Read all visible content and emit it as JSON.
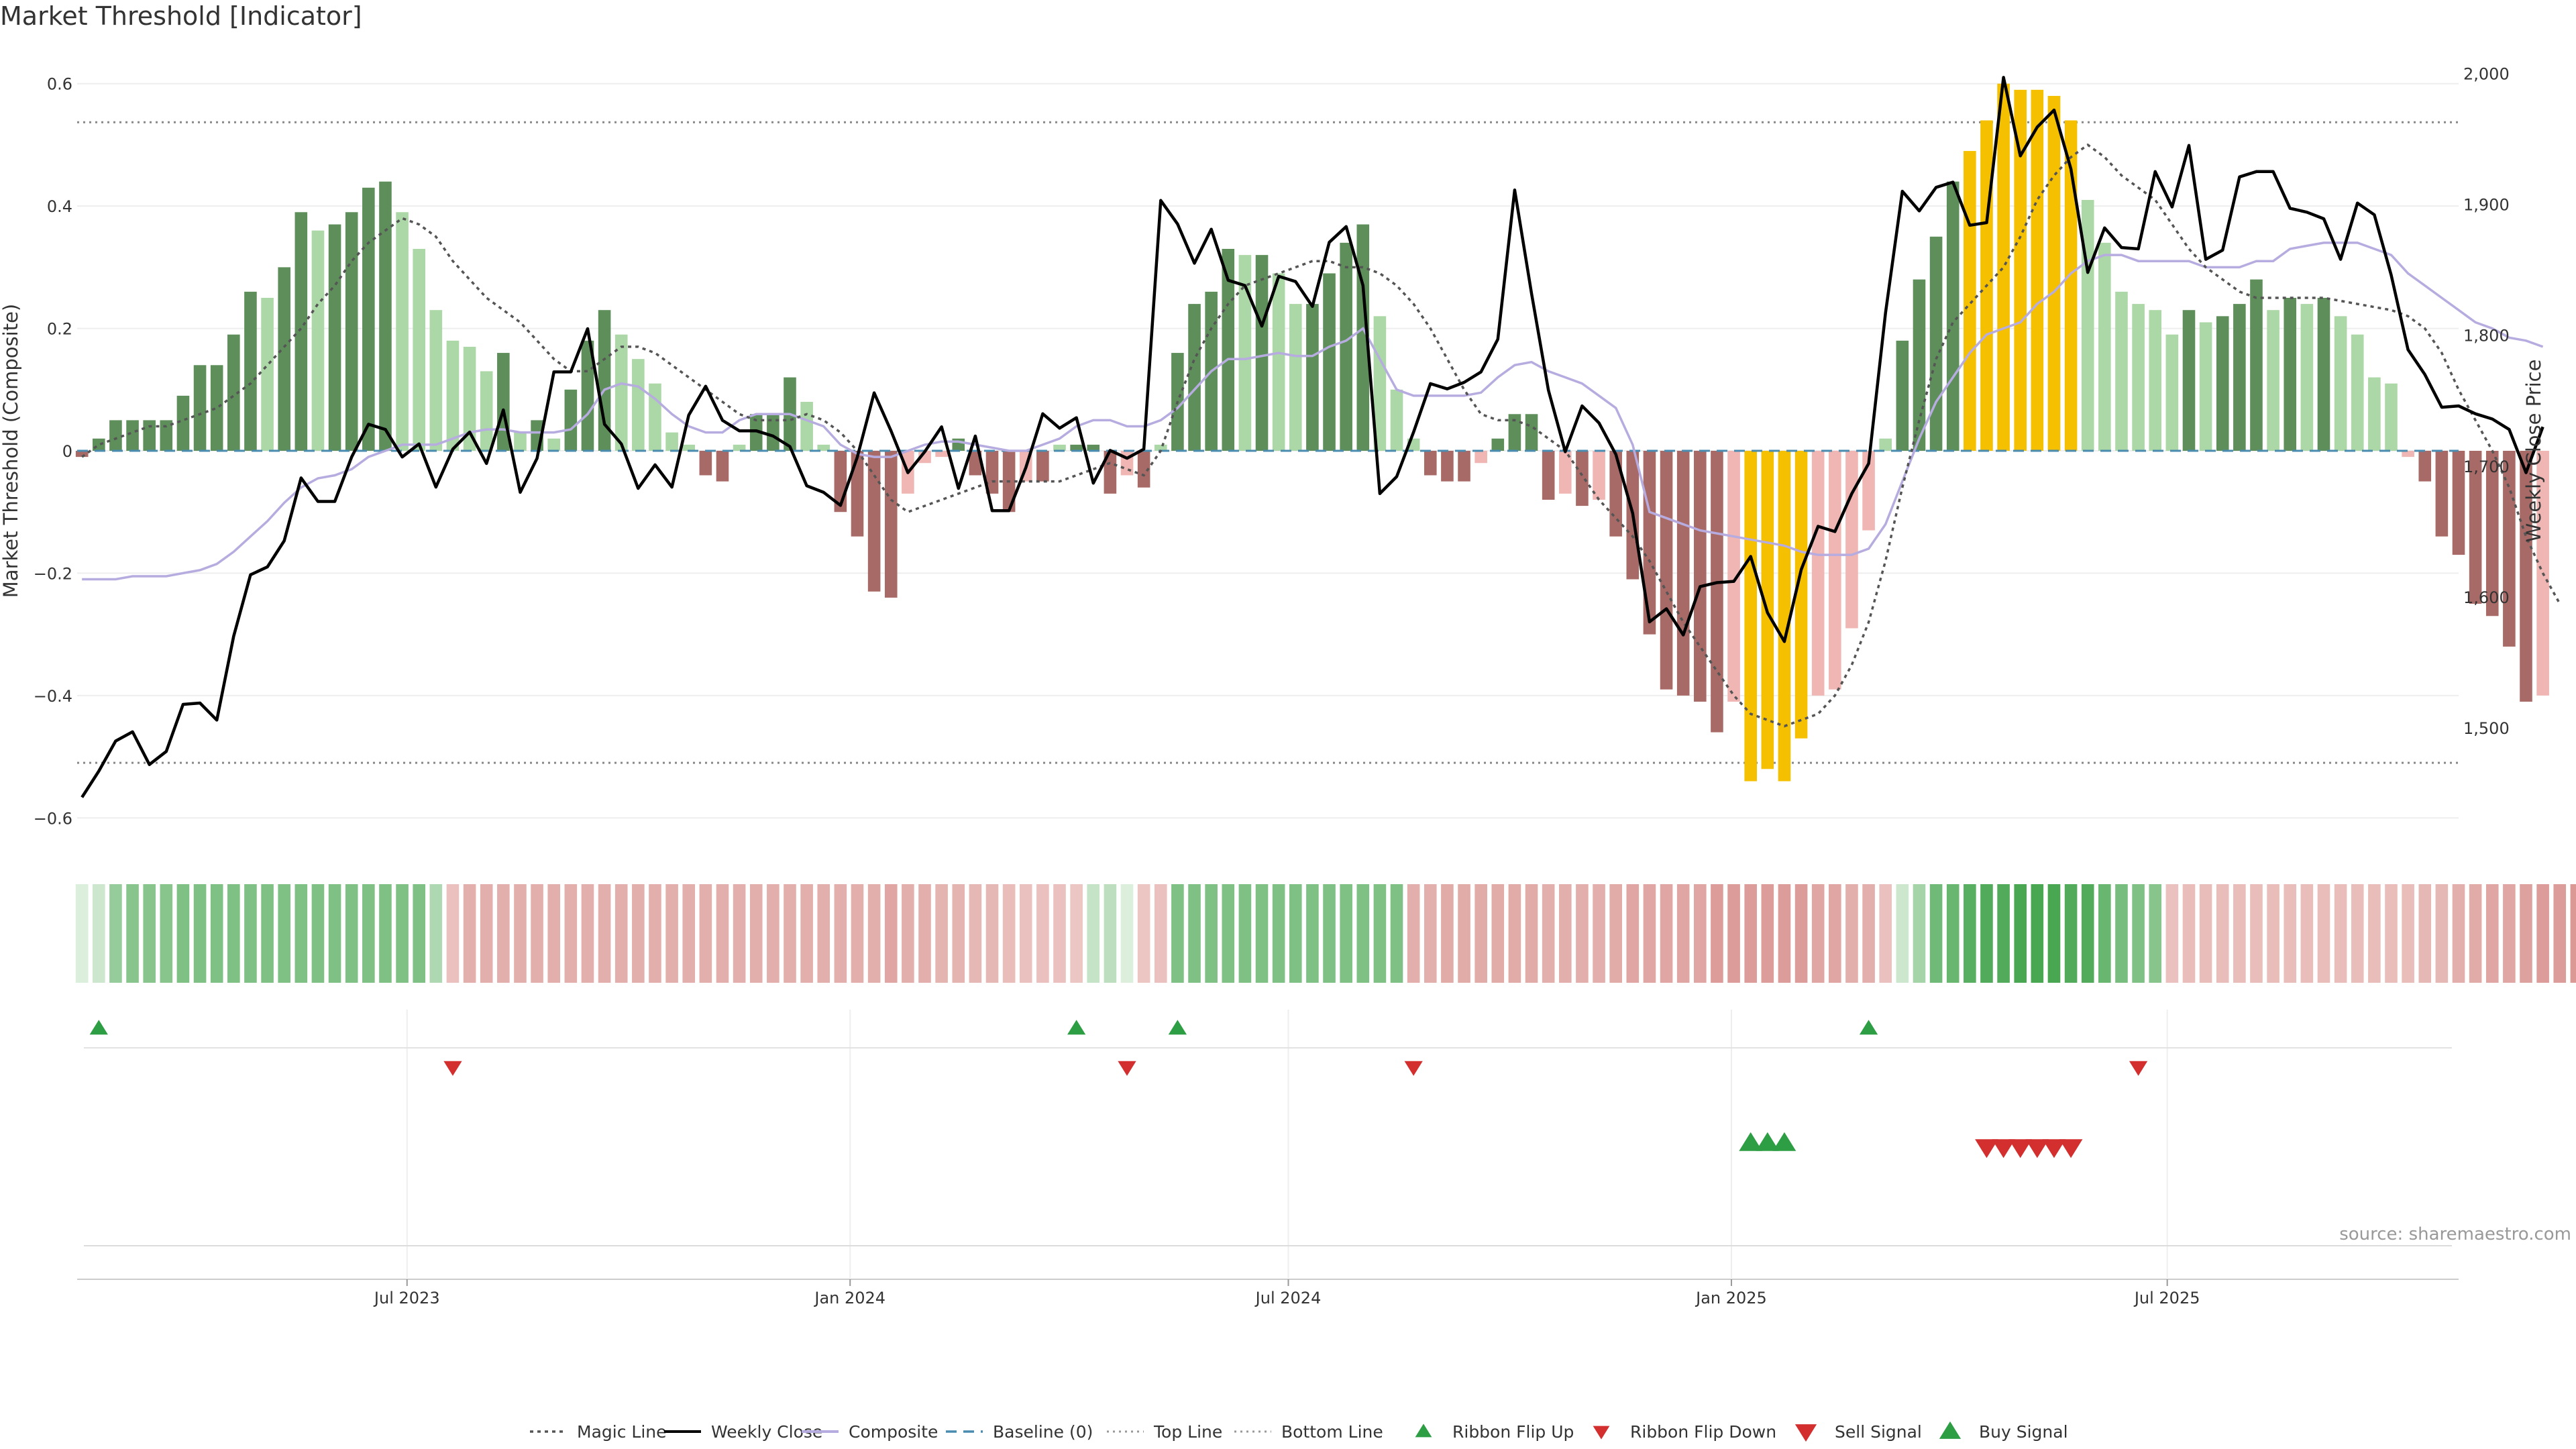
{
  "title": "Market Threshold [Indicator]",
  "source": "source: sharemaestro.com",
  "colors": {
    "bull_strong": "#5e8f5b",
    "bull_light": "#acd7a6",
    "bear_strong": "#a86a66",
    "bear_light": "#efb6b3",
    "extreme": "#f4c000",
    "weekly_close": "#000000",
    "composite": "#b7acdf",
    "magic": "#555555",
    "baseline": "#4a8bb0",
    "signal_up": "#2e9e44",
    "signal_down": "#d32f2f"
  },
  "chart_data": {
    "type": "bar",
    "left_axis": {
      "label": "Market Threshold (Composite)",
      "range": [
        -0.66,
        0.66
      ],
      "ticks": [
        0.6,
        0.4,
        0.2,
        0,
        -0.2,
        -0.4,
        -0.6
      ],
      "tick_labels": [
        "0.6",
        "0.4",
        "0.2",
        "0",
        "−0.2",
        "−0.4",
        "−0.6"
      ]
    },
    "right_axis": {
      "label": "Weekly Close Price",
      "range": [
        1437,
        2010
      ],
      "ticks": [
        2000,
        1900,
        1800,
        1700,
        1600,
        1500
      ],
      "tick_labels": [
        "2,000",
        "1,900",
        "1,800",
        "1,700",
        "1,600",
        "1,500"
      ]
    },
    "x_start": "2023-02-16",
    "week_days": 7,
    "x_range": [
      "2023-02-14",
      "2025-10-30"
    ],
    "x_ticks": [
      {
        "date": "2023-07-01",
        "label": "Jul 2023"
      },
      {
        "date": "2024-01-01",
        "label": "Jan 2024"
      },
      {
        "date": "2024-07-01",
        "label": "Jul 2024"
      },
      {
        "date": "2025-01-01",
        "label": "Jan 2025"
      },
      {
        "date": "2025-07-01",
        "label": "Jul 2025"
      }
    ],
    "top_line": 0.537,
    "bottom_line": -0.51,
    "baseline": 0,
    "threshold": [
      -0.01,
      0.02,
      0.05,
      0.05,
      0.05,
      0.05,
      0.09,
      0.14,
      0.14,
      0.19,
      0.26,
      0.25,
      0.3,
      0.39,
      0.36,
      0.37,
      0.39,
      0.43,
      0.44,
      0.39,
      0.33,
      0.23,
      0.18,
      0.17,
      0.13,
      0.16,
      0.03,
      0.05,
      0.02,
      0.1,
      0.18,
      0.23,
      0.19,
      0.15,
      0.11,
      0.03,
      0.01,
      -0.04,
      -0.05,
      0.01,
      0.06,
      0.06,
      0.12,
      0.08,
      0.01,
      -0.1,
      -0.14,
      -0.23,
      -0.24,
      -0.07,
      -0.02,
      -0.01,
      0.02,
      -0.04,
      -0.07,
      -0.1,
      -0.05,
      -0.05,
      0.01,
      0.01,
      0.01,
      -0.07,
      -0.04,
      -0.06,
      0.01,
      0.16,
      0.24,
      0.26,
      0.33,
      0.32,
      0.32,
      0.29,
      0.24,
      0.24,
      0.29,
      0.34,
      0.37,
      0.22,
      0.1,
      0.02,
      -0.04,
      -0.05,
      -0.05,
      -0.02,
      0.02,
      0.06,
      0.06,
      -0.08,
      -0.07,
      -0.09,
      -0.08,
      -0.14,
      -0.21,
      -0.3,
      -0.39,
      -0.4,
      -0.41,
      -0.46,
      -0.41,
      -0.54,
      -0.52,
      -0.54,
      -0.47,
      -0.4,
      -0.39,
      -0.29,
      -0.13,
      0.02,
      0.18,
      0.28,
      0.35,
      0.44,
      0.49,
      0.54,
      0.6,
      0.59,
      0.59,
      0.58,
      0.54,
      0.41,
      0.34,
      0.26,
      0.24,
      0.23,
      0.19,
      0.23,
      0.21,
      0.22,
      0.24,
      0.28,
      0.23,
      0.25,
      0.24,
      0.25,
      0.22,
      0.19,
      0.12,
      0.11,
      -0.01,
      -0.05,
      -0.14,
      -0.17,
      -0.25,
      -0.27,
      -0.32,
      -0.41,
      -0.4
    ],
    "weekly_close": [
      1447,
      1467,
      1490,
      1497,
      1472,
      1482,
      1518,
      1519,
      1506,
      1570,
      1617,
      1623,
      1643,
      1691,
      1673,
      1673,
      1707,
      1732,
      1728,
      1707,
      1717,
      1684,
      1713,
      1726,
      1702,
      1743,
      1680,
      1706,
      1772,
      1772,
      1805,
      1732,
      1717,
      1683,
      1701,
      1684,
      1739,
      1761,
      1735,
      1727,
      1727,
      1723,
      1715,
      1685,
      1680,
      1670,
      1707,
      1756,
      1727,
      1695,
      1711,
      1730,
      1683,
      1723,
      1666,
      1666,
      1699,
      1740,
      1729,
      1737,
      1687,
      1712,
      1706,
      1713,
      1903,
      1885,
      1855,
      1881,
      1842,
      1838,
      1807,
      1845,
      1841,
      1822,
      1871,
      1883,
      1838,
      1679,
      1692,
      1726,
      1763,
      1759,
      1764,
      1772,
      1797,
      1911,
      1832,
      1758,
      1711,
      1746,
      1733,
      1709,
      1664,
      1581,
      1591,
      1571,
      1608,
      1611,
      1612,
      1631,
      1588,
      1566,
      1621,
      1654,
      1650,
      1679,
      1702,
      1817,
      1910,
      1895,
      1913,
      1917,
      1884,
      1886,
      1997,
      1937,
      1959,
      1972,
      1927,
      1848,
      1882,
      1867,
      1866,
      1925,
      1898,
      1945,
      1858,
      1865,
      1921,
      1925,
      1925,
      1897,
      1894,
      1889,
      1858,
      1901,
      1892,
      1846,
      1789,
      1770,
      1745,
      1746,
      1740,
      1736,
      1728,
      1695,
      1730
    ],
    "composite": [
      -0.21,
      -0.21,
      -0.21,
      -0.205,
      -0.205,
      -0.205,
      -0.2,
      -0.195,
      -0.185,
      -0.165,
      -0.14,
      -0.115,
      -0.085,
      -0.06,
      -0.045,
      -0.04,
      -0.03,
      -0.01,
      0.0,
      0.01,
      0.01,
      0.01,
      0.02,
      0.03,
      0.035,
      0.035,
      0.03,
      0.03,
      0.03,
      0.035,
      0.06,
      0.1,
      0.11,
      0.105,
      0.085,
      0.06,
      0.04,
      0.03,
      0.03,
      0.05,
      0.06,
      0.06,
      0.06,
      0.05,
      0.04,
      0.01,
      -0.005,
      -0.01,
      -0.01,
      0.0,
      0.01,
      0.015,
      0.015,
      0.01,
      0.005,
      0.0,
      0.0,
      0.01,
      0.02,
      0.04,
      0.05,
      0.05,
      0.04,
      0.04,
      0.05,
      0.07,
      0.1,
      0.13,
      0.15,
      0.15,
      0.155,
      0.16,
      0.155,
      0.155,
      0.17,
      0.18,
      0.2,
      0.15,
      0.1,
      0.09,
      0.09,
      0.09,
      0.09,
      0.095,
      0.12,
      0.14,
      0.145,
      0.13,
      0.12,
      0.11,
      0.09,
      0.07,
      0.01,
      -0.1,
      -0.11,
      -0.12,
      -0.13,
      -0.135,
      -0.14,
      -0.145,
      -0.15,
      -0.155,
      -0.165,
      -0.17,
      -0.17,
      -0.17,
      -0.16,
      -0.12,
      -0.05,
      0.02,
      0.08,
      0.12,
      0.16,
      0.19,
      0.2,
      0.21,
      0.24,
      0.26,
      0.29,
      0.31,
      0.32,
      0.32,
      0.31,
      0.31,
      0.31,
      0.31,
      0.3,
      0.3,
      0.3,
      0.31,
      0.31,
      0.33,
      0.335,
      0.34,
      0.34,
      0.34,
      0.33,
      0.32,
      0.29,
      0.27,
      0.25,
      0.23,
      0.21,
      0.2,
      0.185,
      0.18,
      0.17
    ],
    "magic": [
      -0.01,
      0.01,
      0.02,
      0.03,
      0.04,
      0.04,
      0.05,
      0.06,
      0.07,
      0.09,
      0.11,
      0.14,
      0.17,
      0.2,
      0.24,
      0.27,
      0.31,
      0.34,
      0.36,
      0.38,
      0.37,
      0.35,
      0.31,
      0.28,
      0.25,
      0.23,
      0.21,
      0.18,
      0.15,
      0.13,
      0.13,
      0.15,
      0.17,
      0.17,
      0.16,
      0.14,
      0.12,
      0.1,
      0.08,
      0.06,
      0.05,
      0.05,
      0.05,
      0.06,
      0.05,
      0.03,
      0.0,
      -0.04,
      -0.08,
      -0.1,
      -0.09,
      -0.08,
      -0.07,
      -0.06,
      -0.05,
      -0.05,
      -0.05,
      -0.05,
      -0.05,
      -0.04,
      -0.03,
      -0.02,
      -0.03,
      -0.04,
      0.0,
      0.08,
      0.15,
      0.2,
      0.24,
      0.27,
      0.28,
      0.29,
      0.3,
      0.31,
      0.31,
      0.3,
      0.3,
      0.29,
      0.27,
      0.24,
      0.2,
      0.15,
      0.1,
      0.06,
      0.05,
      0.05,
      0.04,
      0.02,
      0.0,
      -0.04,
      -0.08,
      -0.11,
      -0.14,
      -0.18,
      -0.23,
      -0.28,
      -0.32,
      -0.36,
      -0.4,
      -0.43,
      -0.44,
      -0.45,
      -0.44,
      -0.43,
      -0.4,
      -0.35,
      -0.28,
      -0.18,
      -0.06,
      0.05,
      0.15,
      0.21,
      0.24,
      0.27,
      0.3,
      0.35,
      0.41,
      0.45,
      0.48,
      0.5,
      0.48,
      0.45,
      0.43,
      0.41,
      0.37,
      0.33,
      0.3,
      0.28,
      0.26,
      0.25,
      0.25,
      0.25,
      0.25,
      0.25,
      0.245,
      0.24,
      0.235,
      0.23,
      0.22,
      0.2,
      0.16,
      0.1,
      0.05,
      0.0,
      -0.06,
      -0.14,
      -0.2,
      -0.25
    ],
    "ribbon": [
      0.0,
      0.1,
      0.45,
      0.55,
      0.55,
      0.55,
      0.6,
      0.6,
      0.6,
      0.6,
      0.6,
      0.6,
      0.6,
      0.6,
      0.6,
      0.6,
      0.6,
      0.6,
      0.6,
      0.6,
      0.6,
      0.3,
      -0.3,
      -0.5,
      -0.5,
      -0.5,
      -0.5,
      -0.5,
      -0.5,
      -0.5,
      -0.5,
      -0.5,
      -0.5,
      -0.5,
      -0.5,
      -0.5,
      -0.5,
      -0.5,
      -0.5,
      -0.5,
      -0.5,
      -0.5,
      -0.5,
      -0.5,
      -0.5,
      -0.5,
      -0.5,
      -0.5,
      -0.6,
      -0.5,
      -0.5,
      -0.45,
      -0.45,
      -0.4,
      -0.4,
      -0.35,
      -0.3,
      -0.3,
      -0.3,
      -0.25,
      0.15,
      0.2,
      0.0,
      -0.25,
      -0.3,
      0.6,
      0.6,
      0.6,
      0.6,
      0.6,
      0.6,
      0.6,
      0.6,
      0.6,
      0.6,
      0.6,
      0.6,
      0.6,
      0.6,
      -0.5,
      -0.5,
      -0.55,
      -0.55,
      -0.55,
      -0.55,
      -0.55,
      -0.55,
      -0.5,
      -0.5,
      -0.5,
      -0.5,
      -0.55,
      -0.6,
      -0.6,
      -0.6,
      -0.6,
      -0.6,
      -0.7,
      -0.7,
      -0.7,
      -0.7,
      -0.7,
      -0.7,
      -0.6,
      -0.6,
      -0.5,
      -0.5,
      -0.3,
      0.1,
      0.35,
      0.7,
      0.75,
      0.85,
      0.9,
      0.9,
      0.95,
      0.95,
      0.95,
      0.9,
      0.9,
      0.75,
      0.65,
      0.6,
      0.55,
      -0.3,
      -0.35,
      -0.35,
      -0.35,
      -0.35,
      -0.35,
      -0.35,
      -0.35,
      -0.35,
      -0.35,
      -0.35,
      -0.35,
      -0.35,
      -0.35,
      -0.35,
      -0.4,
      -0.4,
      -0.5,
      -0.55,
      -0.6,
      -0.6,
      -0.65,
      -0.7,
      -0.7,
      -0.75,
      -0.8
    ],
    "ribbon_flip_up": [
      1,
      59,
      65,
      106
    ],
    "ribbon_flip_down": [
      22,
      62,
      79,
      122
    ],
    "buy_signal": [
      99,
      100,
      101
    ],
    "sell_signal": [
      113,
      114,
      115,
      116,
      117,
      118
    ],
    "legend": [
      {
        "type": "dotted",
        "label": "Magic Line"
      },
      {
        "type": "solid",
        "label": "Weekly Close"
      },
      {
        "type": "solid-light",
        "label": "Composite"
      },
      {
        "type": "dashed",
        "label": "Baseline (0)"
      },
      {
        "type": "dotted-light",
        "label": "Top Line"
      },
      {
        "type": "dotted-light",
        "label": "Bottom Line"
      },
      {
        "type": "tri-up-small",
        "label": "Ribbon Flip Up"
      },
      {
        "type": "tri-down-small",
        "label": "Ribbon Flip Down"
      },
      {
        "type": "tri-down",
        "label": "Sell Signal"
      },
      {
        "type": "tri-up",
        "label": "Buy Signal"
      }
    ]
  }
}
